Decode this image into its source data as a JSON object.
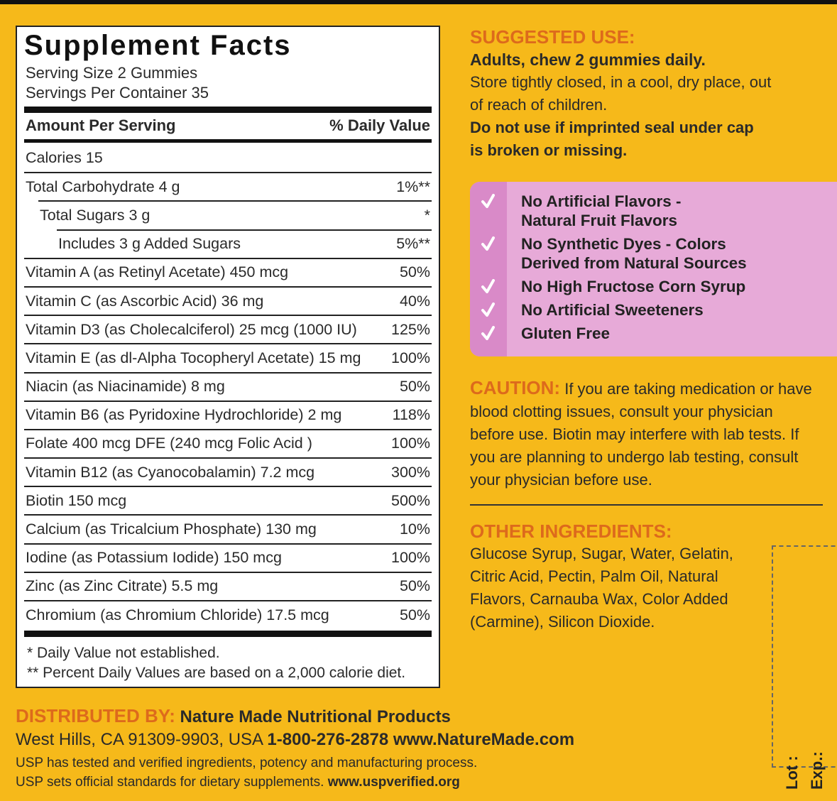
{
  "facts": {
    "title": "Supplement Facts",
    "serving_size": "Serving Size 2 Gummies",
    "servings_per_container": "Servings Per Container 35",
    "header": {
      "amount": "Amount Per Serving",
      "dv": "% Daily Value"
    },
    "rows": [
      {
        "name": "Calories  15"
      },
      {
        "name": "Total Carbohydrate  4 g",
        "dv": "1%**"
      },
      {
        "name": "Total Sugars  3 g",
        "dv": "*"
      },
      {
        "name": "Includes  3 g Added Sugars",
        "dv": "5%**"
      },
      {
        "name": "Vitamin A (as Retinyl Acetate)  450 mcg",
        "dv": "50%"
      },
      {
        "name": "Vitamin C (as Ascorbic Acid)  36 mg",
        "dv": "40%"
      },
      {
        "name": "Vitamin D3 (as Cholecalciferol) 25 mcg (1000 IU)",
        "dv": "125%"
      },
      {
        "name": "Vitamin E (as dl-Alpha Tocopheryl Acetate) 15 mg",
        "dv": "100%"
      },
      {
        "name": "Niacin (as Niacinamide)  8 mg",
        "dv": "50%"
      },
      {
        "name": "Vitamin B6 (as Pyridoxine Hydrochloride)  2 mg",
        "dv": "118%"
      },
      {
        "name": "Folate  400 mcg DFE (240 mcg Folic Acid )",
        "dv": "100%"
      },
      {
        "name": "Vitamin B12 (as Cyanocobalamin)  7.2 mcg",
        "dv": "300%"
      },
      {
        "name": "Biotin  150 mcg",
        "dv": "500%"
      },
      {
        "name": "Calcium (as Tricalcium Phosphate)  130 mg",
        "dv": "10%"
      },
      {
        "name": "Iodine (as Potassium Iodide)  150 mcg",
        "dv": "100%"
      },
      {
        "name": "Zinc (as Zinc Citrate)  5.5 mg",
        "dv": "50%"
      },
      {
        "name": "Chromium (as Chromium Chloride)  17.5 mcg",
        "dv": "50%"
      }
    ],
    "footnotes": [
      "* Daily Value not established.",
      "** Percent Daily Values are based on a 2,000 calorie diet."
    ]
  },
  "suggested_use": {
    "heading": "SUGGESTED USE:",
    "directions": "Adults, chew 2 gummies daily.",
    "storage": "Store tightly closed, in a cool, dry place, out of reach of children.",
    "warning": "Do not use if imprinted seal under cap is broken or missing."
  },
  "claims": [
    [
      "No Artificial Flavors -",
      "Natural Fruit Flavors"
    ],
    [
      "No Synthetic Dyes - Colors",
      "Derived from Natural Sources"
    ],
    [
      "No High Fructose Corn Syrup"
    ],
    [
      "No Artificial Sweeteners"
    ],
    [
      "Gluten Free"
    ]
  ],
  "caution": {
    "heading": "CAUTION:",
    "text": "If you are taking medication or have blood clotting issues, consult your physician before use. Biotin may interfere with lab tests. If you are planning to undergo lab testing, consult your physician before use."
  },
  "other_ingredients": {
    "heading": "OTHER INGREDIENTS:",
    "text": "Glucose Syrup, Sugar, Water, Gelatin, Citric Acid, Pectin, Palm Oil, Natural Flavors, Carnauba Wax, Color Added (Carmine), Silicon Dioxide."
  },
  "distributor": {
    "heading": "DISTRIBUTED BY:",
    "name": "Nature Made Nutritional Products",
    "address": "West Hills, CA 91309-9903, USA",
    "contact": "1-800-276-2878 www.NatureMade.com"
  },
  "usp": {
    "line1": "USP has tested and verified ingredients, potency and manufacturing process.",
    "line2": "USP sets official standards for dietary supplements.",
    "url": "www.uspverified.org"
  },
  "lot": {
    "lot": "Lot :",
    "exp": "Exp.:"
  }
}
